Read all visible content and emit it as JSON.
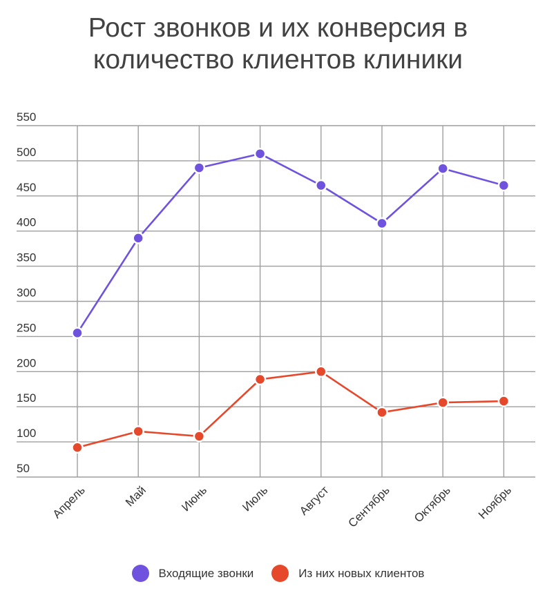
{
  "title_line1": "Рост звонков и их конверсия в",
  "title_line2": "количество клиентов клиники",
  "chart_data": {
    "type": "line",
    "title": "Рост звонков и их конверсия в количество клиентов клиники",
    "categories": [
      "Апрель",
      "Май",
      "Июнь",
      "Июль",
      "Август",
      "Сентябрь",
      "Октябрь",
      "Ноябрь"
    ],
    "series": [
      {
        "name": "Входящие звонки",
        "color": "#6f52de",
        "values": [
          255,
          390,
          490,
          510,
          465,
          411,
          489,
          465
        ]
      },
      {
        "name": "Из них новых клиентов",
        "color": "#e5482b",
        "values": [
          92,
          115,
          108,
          189,
          200,
          142,
          156,
          158
        ]
      }
    ],
    "y_ticks": [
      50,
      100,
      150,
      200,
      250,
      300,
      350,
      400,
      450,
      500,
      550
    ],
    "ylim": [
      50,
      550
    ],
    "grid": true,
    "legend_position": "bottom-center"
  }
}
